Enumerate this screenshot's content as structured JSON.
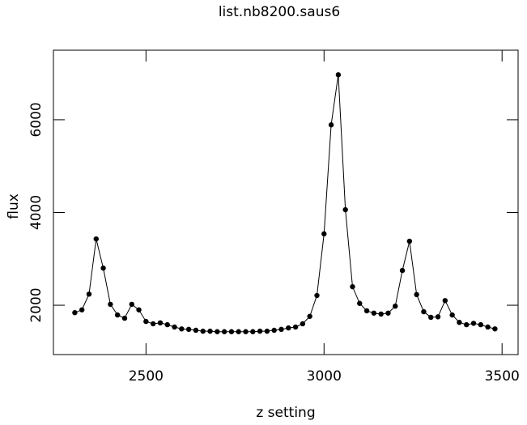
{
  "chart_data": {
    "type": "line",
    "title": "list.nb8200.saus6",
    "xlabel": "z setting",
    "ylabel": "flux",
    "x": [
      2300,
      2320,
      2340,
      2360,
      2380,
      2400,
      2420,
      2440,
      2460,
      2480,
      2500,
      2520,
      2540,
      2560,
      2580,
      2600,
      2620,
      2640,
      2660,
      2680,
      2700,
      2720,
      2740,
      2760,
      2780,
      2800,
      2820,
      2840,
      2860,
      2880,
      2900,
      2920,
      2940,
      2960,
      2980,
      3000,
      3020,
      3040,
      3060,
      3080,
      3100,
      3120,
      3140,
      3160,
      3180,
      3200,
      3220,
      3240,
      3260,
      3280,
      3300,
      3320,
      3340,
      3360,
      3380,
      3400,
      3420,
      3440,
      3460,
      3480
    ],
    "series": [
      {
        "color": "#000000",
        "values": [
          1840,
          1900,
          2240,
          3430,
          2800,
          2020,
          1790,
          1720,
          2020,
          1900,
          1650,
          1600,
          1620,
          1580,
          1530,
          1490,
          1480,
          1460,
          1440,
          1440,
          1430,
          1430,
          1430,
          1430,
          1430,
          1430,
          1440,
          1440,
          1460,
          1480,
          1510,
          1530,
          1600,
          1760,
          2210,
          3540,
          5890,
          6970,
          4060,
          2400,
          2040,
          1880,
          1830,
          1810,
          1830,
          1980,
          2750,
          3380,
          2230,
          1860,
          1740,
          1750,
          2100,
          1790,
          1630,
          1580,
          1610,
          1580,
          1530,
          1490
        ]
      }
    ],
    "xlim": [
      2240,
      3545
    ],
    "ylim": [
      936,
      7500
    ],
    "xticks": [
      2500,
      3000,
      3500
    ],
    "yticks": [
      2000,
      4000,
      6000
    ],
    "grid": false
  }
}
